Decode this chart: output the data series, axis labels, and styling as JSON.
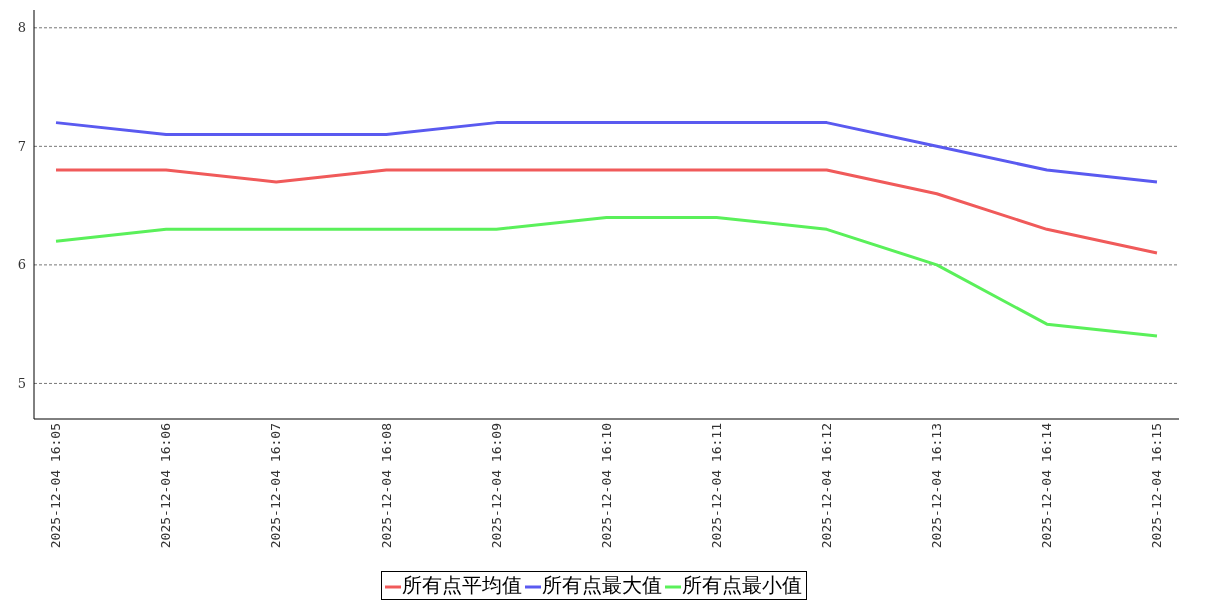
{
  "chart_data": {
    "type": "line",
    "categories": [
      "2025-12-04 16:05",
      "2025-12-04 16:06",
      "2025-12-04 16:07",
      "2025-12-04 16:08",
      "2025-12-04 16:09",
      "2025-12-04 16:10",
      "2025-12-04 16:11",
      "2025-12-04 16:12",
      "2025-12-04 16:13",
      "2025-12-04 16:14",
      "2025-12-04 16:15"
    ],
    "series": [
      {
        "name": "所有点平均值",
        "color": "#f05a5a",
        "values": [
          6.8,
          6.8,
          6.7,
          6.8,
          6.8,
          6.8,
          6.8,
          6.8,
          6.6,
          6.3,
          6.1
        ]
      },
      {
        "name": "所有点最大值",
        "color": "#5a5af0",
        "values": [
          7.2,
          7.1,
          7.1,
          7.1,
          7.2,
          7.2,
          7.2,
          7.2,
          7.0,
          6.8,
          6.7
        ]
      },
      {
        "name": "所有点最小值",
        "color": "#5af05a",
        "values": [
          6.2,
          6.3,
          6.3,
          6.3,
          6.3,
          6.4,
          6.4,
          6.3,
          6.0,
          5.5,
          5.4
        ]
      }
    ],
    "ylim": [
      4.7,
      8.15
    ],
    "yticks": [
      5,
      6,
      7,
      8
    ],
    "grid": "y",
    "legend": "bottom",
    "marker": "none",
    "line_style": "solid"
  }
}
